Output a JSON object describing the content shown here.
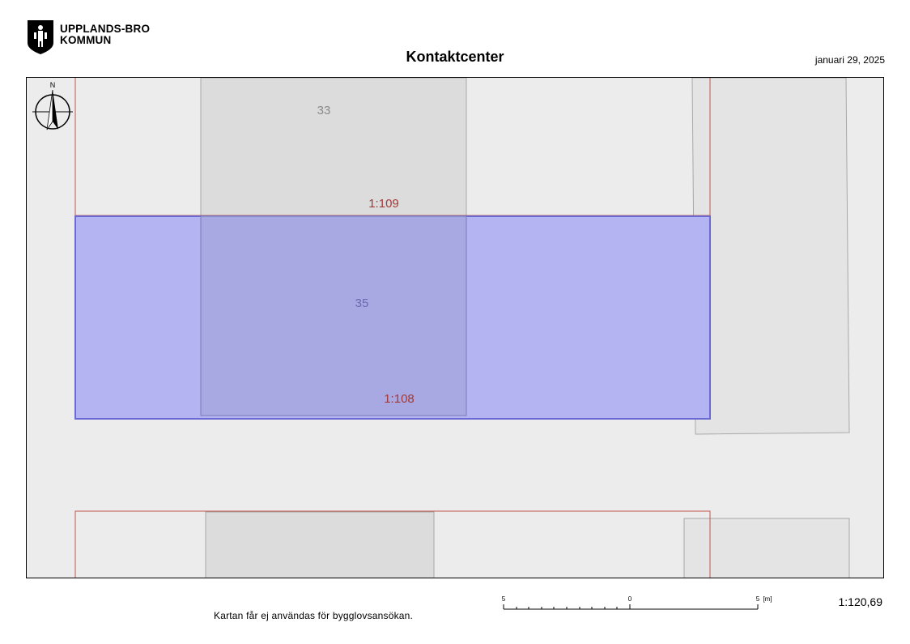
{
  "header": {
    "org_name_line1": "UPPLANDS-BRO",
    "org_name_line2": "KOMMUN",
    "title": "Kontaktcenter",
    "date": "januari 29, 2025"
  },
  "map": {
    "north_label": "N",
    "properties": {
      "upper": "1:109",
      "selected": "1:108"
    },
    "buildings": {
      "upper": "33",
      "selected": "35"
    },
    "colors": {
      "background": "#ececec",
      "building": "#dcdcdc",
      "selection_fill": "#b4b4f2",
      "selection_stroke": "#6a6ad2",
      "property_line": "#c0564c",
      "property_label": "#a03a3a"
    }
  },
  "footer": {
    "disclaimer": "Kartan får ej användas för bygglovsansökan.",
    "scale_ratio": "1:120,69",
    "scalebar": {
      "label_left": "5",
      "label_mid": "0",
      "label_right": "5",
      "unit": "[m]"
    }
  }
}
